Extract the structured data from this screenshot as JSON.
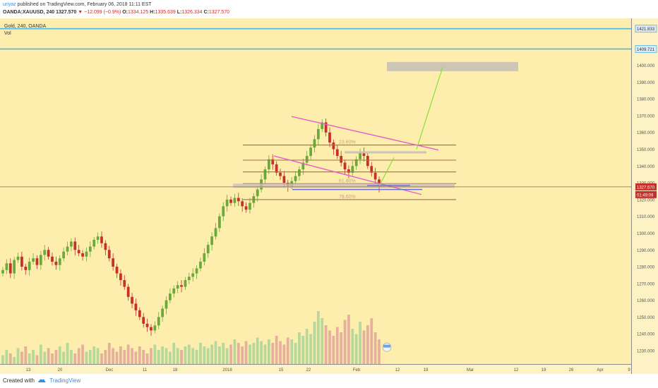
{
  "header": {
    "author": "uriyaz",
    "published_text": "published on TradingView.com, February 06, 2018 11:11 EST",
    "symbol": "OANDA:XAUUSD, 240",
    "last": "1327.570",
    "change_arrow": "▼",
    "change": "−12.099 (−0.9%)",
    "o_label": "O:",
    "o": "1334.125",
    "h_label": "H:",
    "h": "1335.639",
    "l_label": "L:",
    "l": "1326.334",
    "c_label": "C:",
    "c": "1327.570"
  },
  "legend": {
    "title": "Gold, 240, OANDA",
    "vol": "Vol"
  },
  "footer": {
    "created_with": "Created with",
    "brand": "TradingView"
  },
  "colors": {
    "background": "#fdeeae",
    "up": "#6ba93a",
    "down": "#c6302b",
    "channel": "#e85ec8",
    "fib": "#a0704a",
    "horizontal": "#4ab8e0",
    "projection": "#7ee02a",
    "support_blue": "#6a6ad8",
    "zone": "#c9c1b6"
  },
  "chart_data": {
    "type": "candlestick",
    "y_ticks": [
      1230,
      1240,
      1250,
      1260,
      1270,
      1280,
      1290,
      1300,
      1310,
      1320,
      1330,
      1340,
      1350,
      1360,
      1370,
      1380,
      1390,
      1400
    ],
    "ylim": [
      1222,
      1428
    ],
    "x_labels": [
      "13",
      "20",
      "Dec",
      "11",
      "18",
      "2018",
      "15",
      "22",
      "Feb",
      "12",
      "19",
      "Mar",
      "12",
      "19",
      "26",
      "Apr",
      "9"
    ],
    "price_labels": [
      {
        "value": "1421.833",
        "price": 1421.833,
        "style": "horizontal"
      },
      {
        "value": "1409.721",
        "price": 1409.721,
        "style": "horizontal"
      },
      {
        "value": "1327.570",
        "price": 1327.57,
        "style": "current"
      }
    ],
    "countdown": "01:49:09",
    "horizontal_lines": [
      1421.833,
      1409.721
    ],
    "fib_levels": [
      {
        "label": "23.60%",
        "price": 1352.5
      },
      {
        "label": "",
        "price": 1343.5
      },
      {
        "label": "",
        "price": 1336.5
      },
      {
        "label": "61.80%",
        "price": 1329.5
      },
      {
        "label": "78.60%",
        "price": 1320
      }
    ],
    "close_series": [
      1278,
      1282,
      1276,
      1284,
      1286,
      1280,
      1278,
      1283,
      1285,
      1281,
      1287,
      1290,
      1286,
      1283,
      1281,
      1285,
      1289,
      1292,
      1295,
      1290,
      1288,
      1286,
      1289,
      1292,
      1296,
      1298,
      1294,
      1290,
      1285,
      1280,
      1276,
      1272,
      1268,
      1262,
      1258,
      1254,
      1250,
      1246,
      1244,
      1242,
      1245,
      1250,
      1255,
      1260,
      1264,
      1267,
      1269,
      1268,
      1272,
      1274,
      1276,
      1279,
      1283,
      1288,
      1293,
      1298,
      1303,
      1310,
      1316,
      1320,
      1318,
      1321,
      1319,
      1316,
      1314,
      1318,
      1322,
      1326,
      1332,
      1338,
      1344,
      1341,
      1336,
      1334,
      1330,
      1328,
      1331,
      1334,
      1338,
      1342,
      1346,
      1351,
      1356,
      1362,
      1366,
      1360,
      1354,
      1350,
      1346,
      1342,
      1338,
      1336,
      1340,
      1344,
      1348,
      1346,
      1340,
      1336,
      1332,
      1327.5
    ],
    "volume_series": [
      5,
      8,
      6,
      4,
      9,
      7,
      10,
      6,
      8,
      5,
      11,
      7,
      9,
      6,
      8,
      10,
      7,
      12,
      8,
      6,
      9,
      11,
      7,
      8,
      10,
      9,
      6,
      8,
      12,
      9,
      7,
      10,
      8,
      11,
      9,
      7,
      10,
      8,
      6,
      9,
      11,
      8,
      10,
      9,
      7,
      12,
      9,
      8,
      10,
      11,
      9,
      8,
      12,
      10,
      9,
      11,
      13,
      10,
      12,
      9,
      11,
      14,
      12,
      10,
      13,
      11,
      12,
      15,
      13,
      11,
      14,
      12,
      16,
      13,
      11,
      15,
      14,
      12,
      18,
      16,
      20,
      17,
      24,
      30,
      26,
      22,
      19,
      16,
      21,
      18,
      25,
      28,
      20,
      17,
      24,
      19,
      22,
      26,
      18,
      14
    ]
  }
}
